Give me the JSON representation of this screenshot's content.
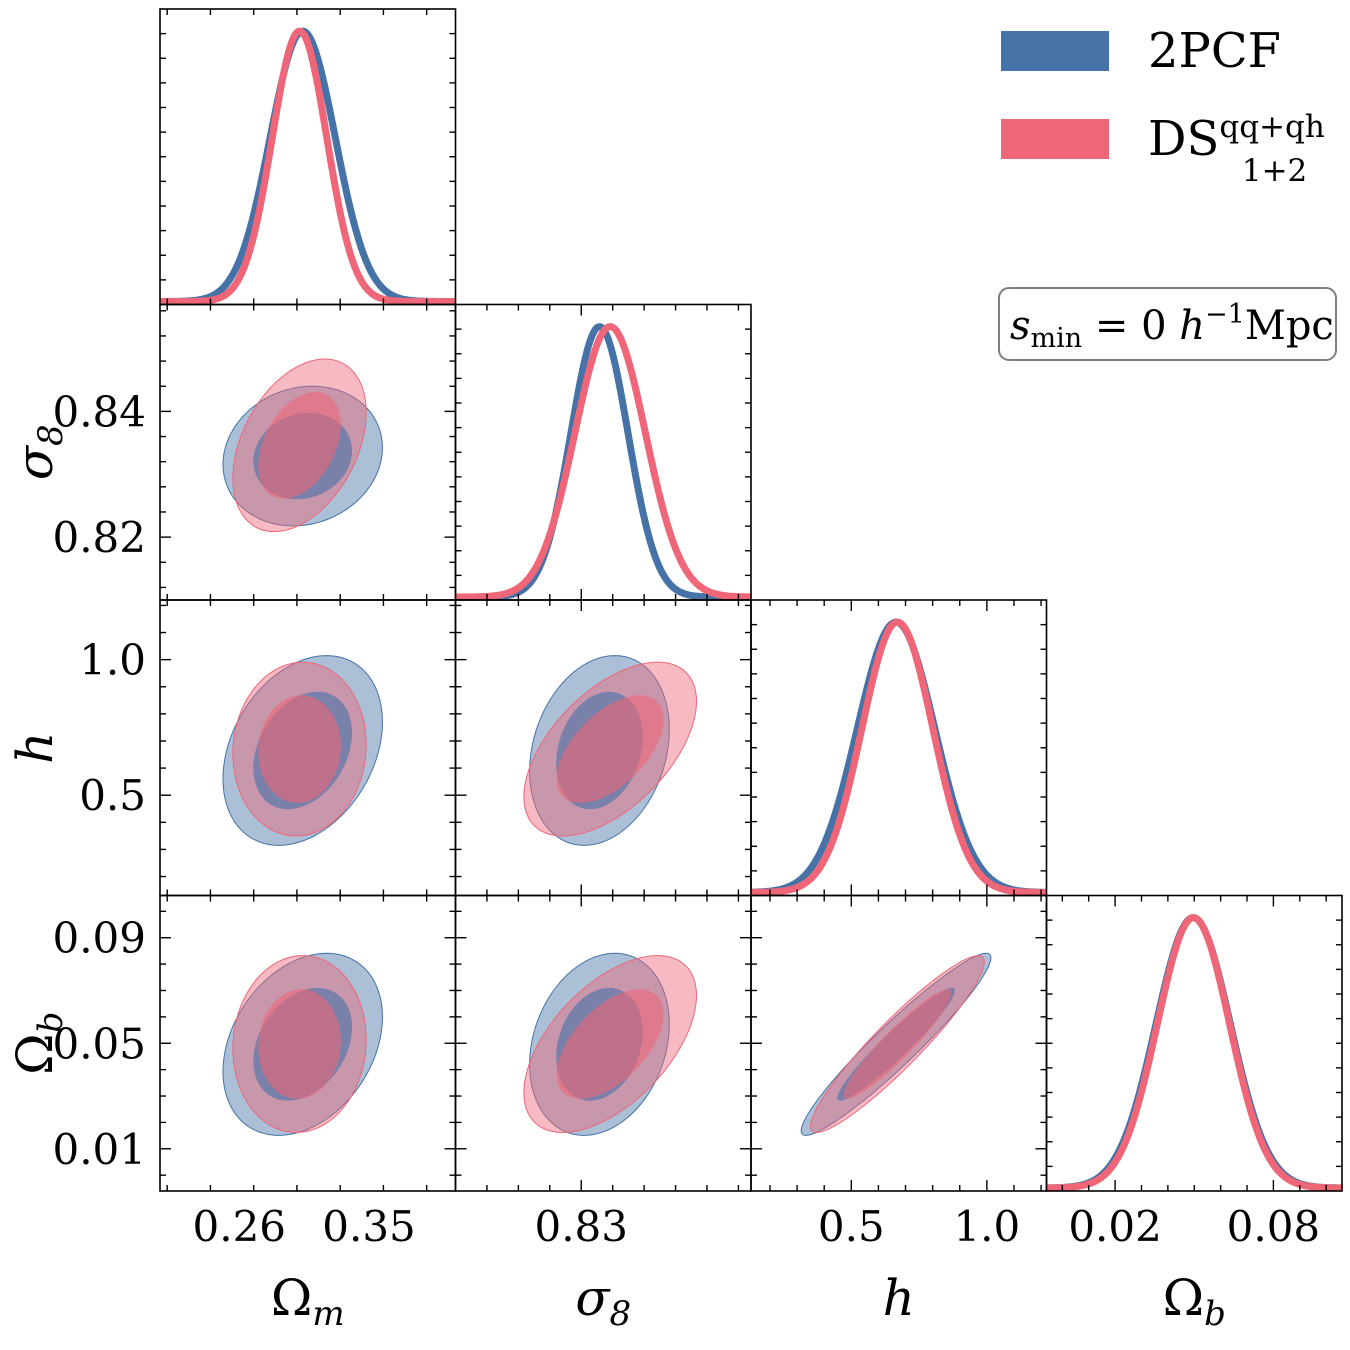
{
  "chart_data": {
    "type": "corner",
    "parameters": [
      {
        "key": "Om",
        "label_base": "Ω",
        "label_sub": "m",
        "range": [
          0.205,
          0.41
        ],
        "ticks": [
          0.26,
          0.35
        ],
        "tick_labels": [
          "0.26",
          "0.35"
        ]
      },
      {
        "key": "s8",
        "label_base": "σ",
        "label_sub": "8",
        "range": [
          0.81,
          0.857
        ],
        "ticks": [
          0.82,
          0.84
        ],
        "tick_labels": [
          "0.82",
          "0.84"
        ],
        "xticks": [
          0.83
        ],
        "xtick_labels": [
          "0.83"
        ]
      },
      {
        "key": "h",
        "label_base": "h",
        "label_sub": "",
        "range": [
          0.13,
          1.22
        ],
        "ticks": [
          0.5,
          1.0
        ],
        "tick_labels": [
          "0.5",
          "1.0"
        ]
      },
      {
        "key": "Ob",
        "label_base": "Ω",
        "label_sub": "b",
        "range": [
          -0.006,
          0.106
        ],
        "ticks": [
          0.01,
          0.05,
          0.09
        ],
        "tick_labels": [
          "0.01",
          "0.05",
          "0.09"
        ],
        "xticks": [
          0.02,
          0.08
        ],
        "xtick_labels": [
          "0.02",
          "0.08"
        ]
      }
    ],
    "series": [
      {
        "name": "2PCF",
        "color": "#4572a7",
        "mean": {
          "Om": 0.304,
          "s8": 0.8329,
          "h": 0.665,
          "Ob": 0.0496
        },
        "sigma": {
          "Om": 0.0226,
          "s8": 0.00454,
          "h": 0.143,
          "Ob": 0.0141
        },
        "corr": {
          "Om|s8": 0.12,
          "Om|h": 0.3,
          "Om|Ob": 0.3,
          "s8|h": 0.22,
          "s8|Ob": 0.22,
          "h|Ob": 0.95
        }
      },
      {
        "name": "DS_{1+2}^{qq+qh}",
        "legend_main": "DS",
        "legend_sup": "qq+qh",
        "legend_sub": "1+2",
        "color": "#ee6677",
        "mean": {
          "Om": 0.3018,
          "s8": 0.8346,
          "h": 0.67,
          "Ob": 0.0497
        },
        "sigma": {
          "Om": 0.0189,
          "s8": 0.00561,
          "h": 0.131,
          "Ob": 0.0137
        },
        "corr": {
          "Om|s8": 0.38,
          "Om|h": 0.05,
          "Om|Ob": 0.05,
          "s8|h": 0.55,
          "s8|Ob": 0.55,
          "h|Ob": 0.93
        }
      }
    ],
    "contour_levels": [
      "68%",
      "95%"
    ],
    "annotation": {
      "prefix": "s",
      "prefix_sub": "min",
      "eq": " = 0 ",
      "h": "h",
      "h_sup": "−1",
      "unit": "Mpc"
    },
    "legend_location": "top-right"
  }
}
